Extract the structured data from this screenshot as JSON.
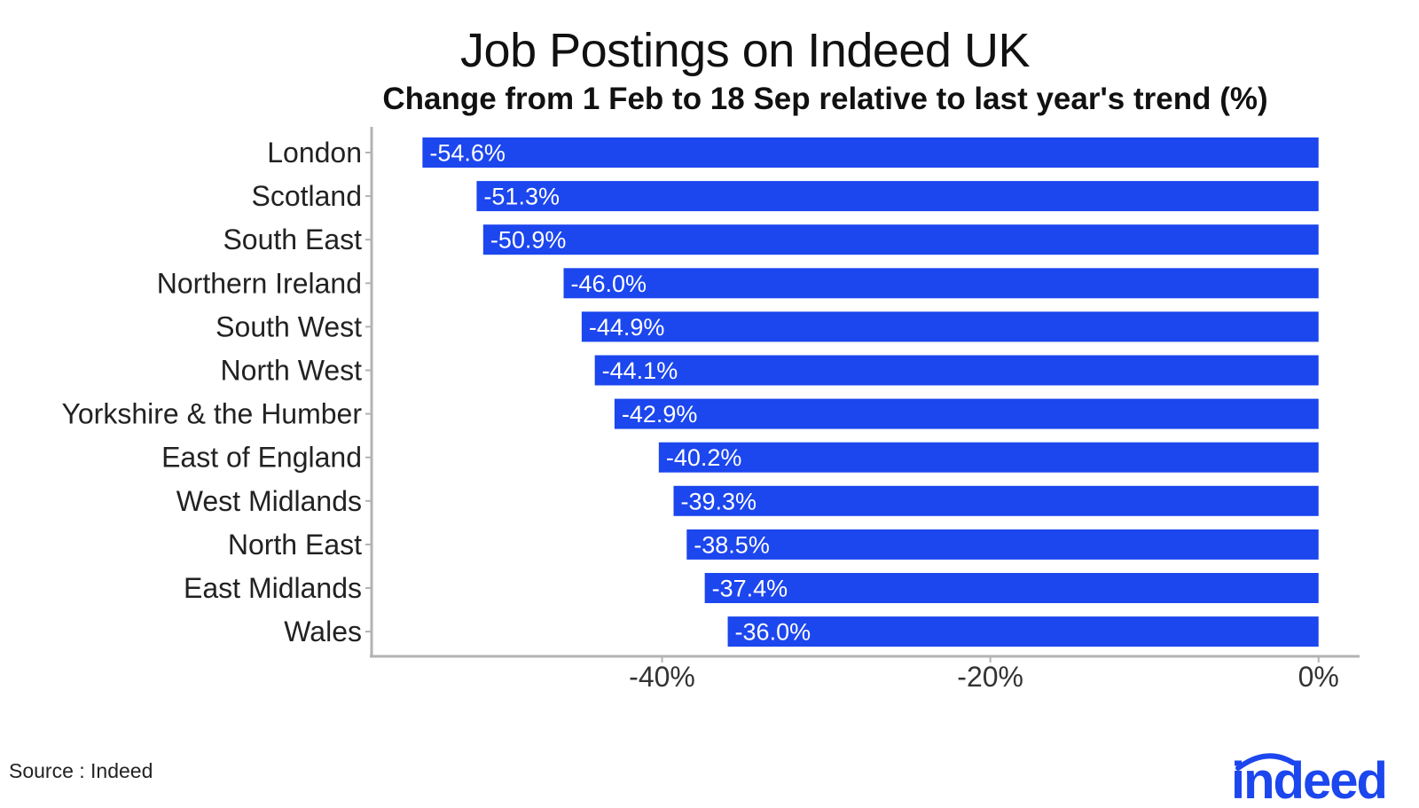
{
  "chart_data": {
    "type": "bar",
    "orientation": "horizontal",
    "title": "Job Postings on Indeed UK",
    "subtitle": "Change from 1 Feb to 18 Sep relative to last year's trend (%)",
    "categories": [
      "London",
      "Scotland",
      "South East",
      "Northern Ireland",
      "South West",
      "North West",
      "Yorkshire & the Humber",
      "East of England",
      "West Midlands",
      "North East",
      "East Midlands",
      "Wales"
    ],
    "values": [
      -54.6,
      -51.3,
      -50.9,
      -46.0,
      -44.9,
      -44.1,
      -42.9,
      -40.2,
      -39.3,
      -38.5,
      -37.4,
      -36.0
    ],
    "data_labels": [
      "-54.6%",
      "-51.3%",
      "-50.9%",
      "-46.0%",
      "-44.9%",
      "-44.1%",
      "-42.9%",
      "-40.2%",
      "-39.3%",
      "-38.5%",
      "-37.4%",
      "-36.0%"
    ],
    "xticks": [
      -40,
      -20,
      0
    ],
    "xtick_labels": [
      "-40%",
      "-20%",
      "0%"
    ],
    "xlim": [
      -57.7,
      2.5
    ],
    "bar_color": "#1c46ee",
    "axis_color": "#b3b3b3",
    "grid": false,
    "legend": "none"
  },
  "footer": {
    "source": "Source : Indeed",
    "logo_text": "indeed"
  },
  "colors": {
    "brand": "#1c46ee",
    "text": "#222222"
  }
}
